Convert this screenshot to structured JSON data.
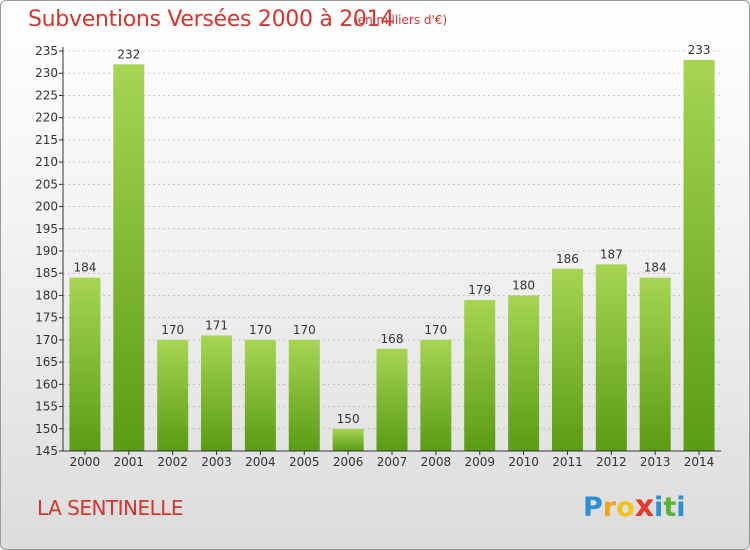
{
  "header": {
    "title": "Subventions Versées 2000 à 2014",
    "unit_note": "(en milliers d'€)"
  },
  "footer": {
    "commune": "LA SENTINELLE",
    "logo_letters": [
      "P",
      "r",
      "o",
      "x",
      "i",
      "t",
      "i"
    ],
    "logo_colors": [
      "#2e8fd6",
      "#f0a21a",
      "#f5c21a",
      "#e63a2a",
      "#2e8fd6",
      "#56b432",
      "#2e8fd6"
    ]
  },
  "colors": {
    "accent": "#d2362f",
    "bar_top": "#a6d553",
    "bar_bottom": "#5a9c14",
    "axis": "#333333",
    "grid": "#aaaaaa"
  },
  "chart_data": {
    "type": "bar",
    "categories": [
      "2000",
      "2001",
      "2002",
      "2003",
      "2004",
      "2005",
      "2006",
      "2007",
      "2008",
      "2009",
      "2010",
      "2011",
      "2012",
      "2013",
      "2014"
    ],
    "values": [
      184,
      232,
      170,
      171,
      170,
      170,
      150,
      168,
      170,
      179,
      180,
      186,
      187,
      184,
      233
    ],
    "title": "Subventions Versées 2000 à 2014",
    "ylim": [
      145,
      235
    ],
    "yticks": [
      145,
      150,
      155,
      160,
      165,
      170,
      175,
      180,
      185,
      190,
      195,
      200,
      205,
      210,
      215,
      220,
      225,
      230,
      235
    ],
    "grid": true,
    "data_labels": true
  }
}
